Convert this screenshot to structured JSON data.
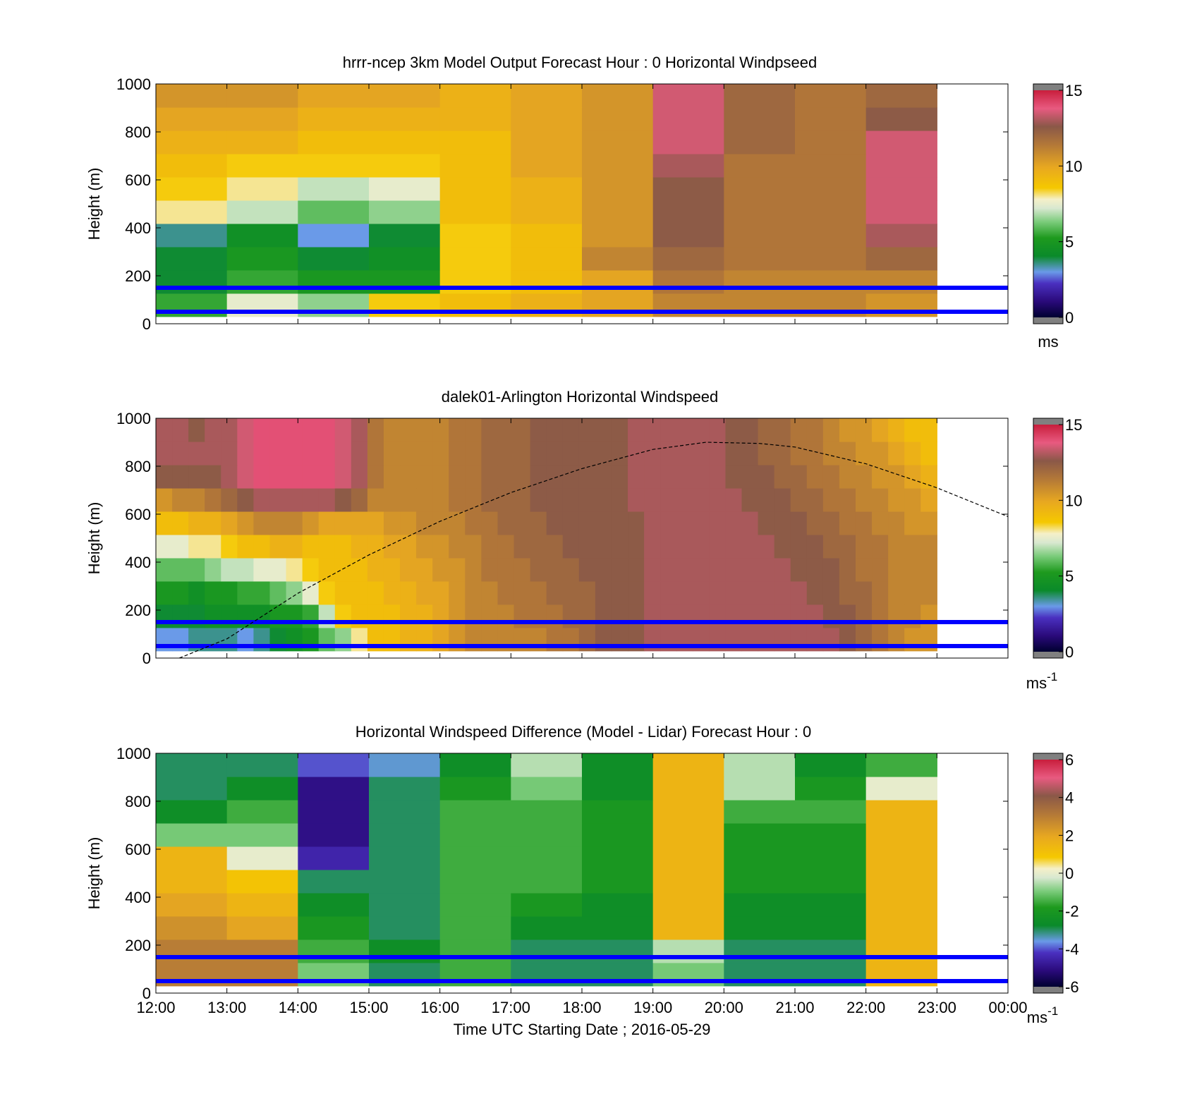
{
  "figure": {
    "background": "#ffffff"
  },
  "chart_data": [
    {
      "type": "heatmap",
      "title": "hrrr-ncep 3km Model Output   Forecast Hour : 0 Horizontal Windpseed",
      "ylabel": "Height (m)",
      "xlabel": "",
      "ylim": [
        0,
        1000
      ],
      "yticks": [
        "0",
        "200",
        "400",
        "600",
        "800",
        "1000"
      ],
      "x_tick_labels": [],
      "colorbar": {
        "lim": [
          0,
          15
        ],
        "ticks": [
          "0",
          "5",
          "10",
          "15"
        ],
        "unit": "ms",
        "unit_sup": ""
      },
      "columns": 11,
      "rows_per_column": 10,
      "values": [
        [
          5.5,
          7.5,
          6.5,
          8.5,
          9,
          9.5,
          10,
          11,
          11,
          11,
          10.5
        ],
        [
          4,
          5.5,
          5,
          5,
          8.5,
          9,
          10,
          11.5,
          11,
          11,
          11
        ],
        [
          4,
          5,
          4,
          4.5,
          8.5,
          9,
          11,
          12,
          11.5,
          11.5,
          12
        ],
        [
          3.5,
          4.5,
          3,
          4,
          8.5,
          9,
          10.5,
          12.5,
          11.5,
          11.5,
          13
        ],
        [
          8,
          7,
          6,
          6.5,
          9,
          9.5,
          10.5,
          12.5,
          11.5,
          11.5,
          13.5
        ],
        [
          8.5,
          8,
          7,
          7.5,
          9,
          9.5,
          10.5,
          12.5,
          11.5,
          11.5,
          13.5
        ],
        [
          9,
          8.5,
          8.5,
          8.5,
          9,
          10,
          10.5,
          13,
          11.5,
          11.5,
          13.5
        ],
        [
          9.5,
          9.5,
          9,
          9,
          9,
          10,
          10.5,
          13.5,
          12,
          11.5,
          13.5
        ],
        [
          10,
          10,
          9.5,
          9.5,
          9.5,
          10,
          10.5,
          13.5,
          12,
          11.5,
          12.5
        ],
        [
          10.5,
          10.5,
          10,
          10,
          9.5,
          10,
          10.5,
          13.5,
          12,
          11.5,
          12
        ]
      ],
      "hlines": [
        50,
        150
      ],
      "line_color": "#0000ff"
    },
    {
      "type": "heatmap",
      "title": "dalek01-Arlington  Horizontal Windspeed",
      "ylabel": "Height (m)",
      "xlabel": "",
      "ylim": [
        0,
        1000
      ],
      "yticks": [
        "0",
        "200",
        "400",
        "600",
        "800",
        "1000"
      ],
      "x_tick_labels": [],
      "colorbar": {
        "lim": [
          0,
          15
        ],
        "ticks": [
          "0",
          "5",
          "10",
          "15"
        ],
        "unit": "ms",
        "unit_sup": "-1"
      },
      "columns": 48,
      "rows_per_column": 10,
      "values": [
        [
          3,
          3,
          3.5,
          3.5,
          3.5,
          3,
          3.5,
          4,
          4.5,
          5,
          6,
          6.5,
          8,
          9,
          9,
          9.5,
          9.5,
          10,
          10.5,
          11,
          11,
          11,
          11,
          11,
          11.5,
          11.5,
          12,
          12.5,
          12.5,
          12.5,
          13,
          13,
          13,
          13,
          13,
          13,
          13,
          13,
          13,
          13,
          13,
          13,
          12.5,
          12,
          11.5,
          11,
          10.5,
          10.5
        ],
        [
          4,
          4,
          4,
          4.5,
          4.5,
          4.5,
          4.5,
          5,
          5,
          5.5,
          7,
          8.5,
          9,
          9,
          9,
          9.5,
          9.5,
          10,
          10.5,
          11,
          11,
          11,
          11.5,
          11.5,
          11.5,
          12,
          12,
          12.5,
          12.5,
          12.5,
          13,
          13,
          13,
          13,
          13,
          13,
          13,
          13,
          13,
          13,
          13,
          12.5,
          12.5,
          12,
          11.5,
          11,
          11,
          10.5
        ],
        [
          5,
          5,
          4.5,
          5,
          5,
          5.5,
          5.5,
          6,
          6.5,
          7.5,
          8.5,
          9,
          9,
          9,
          9.5,
          9.5,
          10,
          10,
          10.5,
          11,
          11,
          11.5,
          11.5,
          11.5,
          12,
          12,
          12,
          12.5,
          12.5,
          12.5,
          13,
          13,
          13,
          13,
          13,
          13,
          13,
          13,
          13,
          13,
          12.5,
          12.5,
          12,
          12,
          11.5,
          11,
          11,
          11
        ],
        [
          6,
          6,
          6,
          6.5,
          7,
          7,
          7.5,
          7.5,
          8,
          8.5,
          9,
          9,
          9,
          9.5,
          9.5,
          10,
          10,
          10.5,
          10.5,
          11,
          11.5,
          11.5,
          11.5,
          12,
          12,
          12,
          12.5,
          12.5,
          12.5,
          12.5,
          13,
          13,
          13,
          13,
          13,
          13,
          13,
          13,
          13,
          12.5,
          12.5,
          12.5,
          12,
          11.5,
          11.5,
          11,
          11,
          11
        ],
        [
          7.5,
          7.5,
          8,
          8,
          8.5,
          9,
          9,
          9.5,
          9.5,
          9,
          9,
          9,
          9.5,
          9.5,
          10,
          10,
          10.5,
          10.5,
          11,
          11,
          11.5,
          11.5,
          12,
          12,
          12,
          12.5,
          12.5,
          12.5,
          12.5,
          12.5,
          13,
          13,
          13,
          13,
          13,
          13,
          13,
          13,
          12.5,
          12.5,
          12.5,
          12,
          12,
          11.5,
          11.5,
          11,
          11,
          11
        ],
        [
          9,
          9,
          9.5,
          9.5,
          10,
          10.5,
          11,
          11,
          11,
          10.5,
          10,
          10,
          10,
          10,
          10.5,
          10.5,
          11,
          11,
          11,
          11.5,
          11.5,
          12,
          12,
          12,
          12.5,
          12.5,
          12.5,
          12.5,
          12.5,
          12.5,
          13,
          13,
          13,
          13,
          13,
          13,
          13,
          12.5,
          12.5,
          12.5,
          12,
          12,
          11.5,
          11.5,
          11,
          11,
          10.5,
          10.5
        ],
        [
          10.5,
          11,
          11,
          11.5,
          12,
          12.5,
          13,
          13,
          13,
          13,
          13,
          12.5,
          12,
          11,
          11,
          11,
          11,
          11,
          11.5,
          11.5,
          12,
          12,
          12,
          12.5,
          12.5,
          12.5,
          12.5,
          12.5,
          12.5,
          13,
          13,
          13,
          13,
          13,
          13,
          13,
          12.5,
          12.5,
          12.5,
          12,
          12,
          11.5,
          11.5,
          11,
          11,
          10.5,
          10.5,
          10
        ],
        [
          12.5,
          12.5,
          12.5,
          12.5,
          13,
          13.5,
          14,
          14,
          14,
          14,
          14,
          13.5,
          13,
          11.5,
          11,
          11,
          11,
          11,
          11.5,
          11.5,
          12,
          12,
          12,
          12.5,
          12.5,
          12.5,
          12.5,
          12.5,
          12.5,
          13,
          13,
          13,
          13,
          13,
          13,
          12.5,
          12.5,
          12.5,
          12,
          12,
          11.5,
          11.5,
          11,
          11,
          10.5,
          10.5,
          10,
          9.5
        ],
        [
          13,
          13,
          13,
          13,
          13,
          13.5,
          14,
          14,
          14,
          14,
          14,
          13.5,
          13,
          11.5,
          11,
          11,
          11,
          11,
          11.5,
          11.5,
          12,
          12,
          12,
          12.5,
          12.5,
          12.5,
          12.5,
          12.5,
          12.5,
          13,
          13,
          13,
          13,
          13,
          13,
          12.5,
          12.5,
          12,
          12,
          11.5,
          11.5,
          11,
          11,
          10.5,
          10.5,
          10,
          9.5,
          9
        ],
        [
          13,
          13,
          12.5,
          13,
          13,
          13.5,
          14,
          14,
          14,
          14,
          14,
          13.5,
          13,
          11.5,
          11,
          11,
          11,
          11,
          11.5,
          11.5,
          12,
          12,
          12,
          12.5,
          12.5,
          12.5,
          12.5,
          12.5,
          12.5,
          13,
          13,
          13,
          13,
          13,
          13,
          12.5,
          12.5,
          12,
          12,
          11.5,
          11.5,
          11,
          10.5,
          10.5,
          10,
          9.5,
          9,
          9
        ]
      ],
      "hlines": [
        50,
        150
      ],
      "line_color": "#0000ff",
      "curve": {
        "points": [
          [
            12.33,
            0
          ],
          [
            13.0,
            80
          ],
          [
            14.0,
            270
          ],
          [
            15.0,
            430
          ],
          [
            16.0,
            570
          ],
          [
            17.0,
            690
          ],
          [
            18.0,
            790
          ],
          [
            19.0,
            870
          ],
          [
            19.75,
            900
          ],
          [
            20.5,
            895
          ],
          [
            21.0,
            880
          ],
          [
            22.0,
            810
          ],
          [
            23.0,
            710
          ],
          [
            24.0,
            590
          ]
        ],
        "color": "#000000"
      }
    },
    {
      "type": "heatmap",
      "title": "Horizontal Windspeed Difference (Model - Lidar) Forecast Hour : 0",
      "ylabel": "Height (m)",
      "xlabel": "Time UTC  Starting Date ; 2016-05-29",
      "ylim": [
        0,
        1000
      ],
      "yticks": [
        "0",
        "200",
        "400",
        "600",
        "800",
        "1000"
      ],
      "x_tick_labels": [
        "12:00",
        "13:00",
        "14:00",
        "15:00",
        "16:00",
        "17:00",
        "18:00",
        "19:00",
        "20:00",
        "21:00",
        "22:00",
        "23:00",
        "00:00"
      ],
      "colorbar": {
        "lim": [
          -6,
          6
        ],
        "ticks": [
          "-6",
          "-4",
          "-2",
          "0",
          "2",
          "4",
          "6"
        ],
        "unit": "ms",
        "unit_sup": "-1"
      },
      "columns": 11,
      "rows_per_column": 10,
      "values": [
        [
          3,
          3,
          -1,
          -3,
          -1.5,
          -3,
          -3,
          -1,
          -3,
          -3,
          1.5
        ],
        [
          3,
          3,
          -1.5,
          -2.5,
          -1.5,
          -3,
          -3,
          -0.5,
          -3,
          -3,
          1.5
        ],
        [
          2.5,
          2,
          -2,
          -3,
          -1.5,
          -2.5,
          -2.5,
          1.5,
          -2.5,
          -2.5,
          1.5
        ],
        [
          2,
          1.5,
          -2.5,
          -3,
          -1.5,
          -2,
          -2.5,
          1.5,
          -2.5,
          -2.5,
          1.5
        ],
        [
          1.5,
          1,
          -3,
          -3,
          -1.5,
          -1.5,
          -2,
          1.5,
          -2,
          -2,
          1.5
        ],
        [
          1.5,
          0,
          -4.5,
          -3,
          -1.5,
          -1.5,
          -2,
          1.5,
          -2,
          -2,
          1.5
        ],
        [
          -1,
          -1,
          -5,
          -3,
          -1.5,
          -1.5,
          -2,
          1.5,
          -2,
          -2,
          1.5
        ],
        [
          -2.5,
          -1.5,
          -5,
          -3,
          -1.5,
          -1.5,
          -2,
          1.5,
          -1.5,
          -1.5,
          1.5
        ],
        [
          -3,
          -2.5,
          -5,
          -3,
          -2,
          -1,
          -2.5,
          1.5,
          -0.5,
          -2,
          0
        ],
        [
          -3,
          -3,
          -4,
          -3.5,
          -2.5,
          -0.5,
          -2.5,
          1.5,
          -0.5,
          -2.5,
          -1.5
        ]
      ],
      "hlines": [
        50,
        150
      ],
      "line_color": "#0000ff"
    }
  ]
}
